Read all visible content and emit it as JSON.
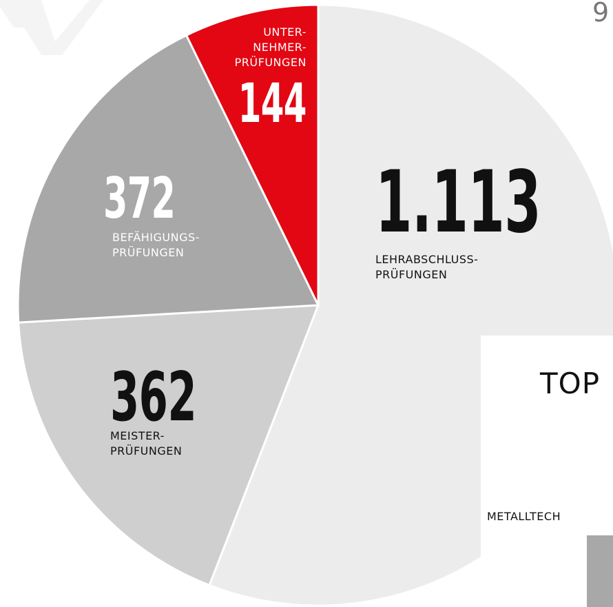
{
  "chart_data": {
    "type": "pie",
    "categories": [
      "LEHRABSCHLUSS-\nPRÜFUNGEN",
      "MEISTER-\nPRÜFUNGEN",
      "BEFÄHIGUNGS-\nPRÜFUNGEN",
      "UNTER-\nNEHMER-\nPRÜFUNGEN"
    ],
    "values": [
      1113,
      362,
      372,
      144
    ],
    "value_labels": [
      "1.113",
      "362",
      "372",
      "144"
    ],
    "colors": [
      "#ececec",
      "#cfcfcf",
      "#a8a8a8",
      "#e30613"
    ]
  },
  "page_number": "9",
  "side_heading": "TOP",
  "side_text": "METALLTECH"
}
